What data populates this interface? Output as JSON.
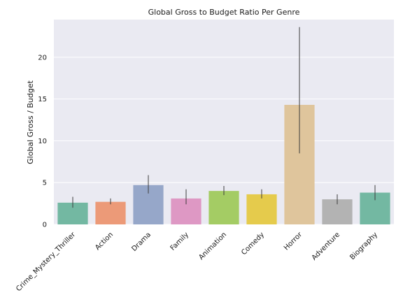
{
  "chart_data": {
    "type": "bar",
    "title": "Global Gross to Budget Ratio Per Genre",
    "xlabel": "",
    "ylabel": "Global Gross / Budget",
    "ylim": [
      0,
      24.5
    ],
    "yticks": [
      0,
      5,
      10,
      15,
      20
    ],
    "grid": true,
    "categories": [
      "Crime_Mystery_Thriller",
      "Action",
      "Drama",
      "Family",
      "Animation",
      "Comedy",
      "Horror",
      "Adventure",
      "Biography"
    ],
    "values": [
      2.6,
      2.7,
      4.7,
      3.1,
      4.0,
      3.6,
      14.3,
      3.0,
      3.8
    ],
    "error_low": [
      2.0,
      2.4,
      3.7,
      2.4,
      3.5,
      3.1,
      8.5,
      2.4,
      2.9
    ],
    "error_high": [
      3.3,
      3.1,
      5.9,
      4.2,
      4.6,
      4.2,
      23.6,
      3.6,
      4.7
    ],
    "colors": [
      "#73b8a2",
      "#ec9a78",
      "#96a7c9",
      "#de98c4",
      "#a4cc64",
      "#e5cb4c",
      "#dfc59c",
      "#b3b3b3",
      "#73b8a2"
    ]
  }
}
